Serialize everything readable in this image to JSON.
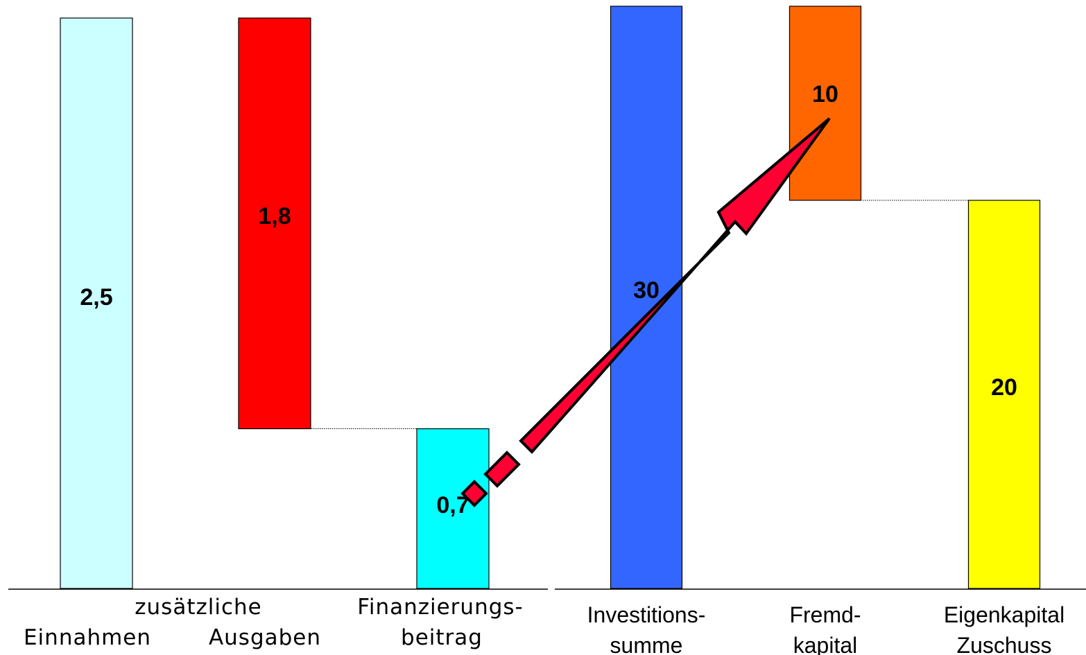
{
  "chart_data": [
    {
      "type": "bar",
      "subtype": "waterfall",
      "title": "",
      "xlabel": "",
      "ylabel": "",
      "categories": [
        [
          "",
          "Einnahmen"
        ],
        [
          "zusätzliche",
          "Ausgaben"
        ],
        [
          "Finanzierungs-",
          "beitrag"
        ]
      ],
      "bars": [
        {
          "value": 2.5,
          "base": 0,
          "label": "2,5",
          "color": "#CCFFFF"
        },
        {
          "value": 1.8,
          "base": 0.7,
          "label": "1,8",
          "color": "#FF0000"
        },
        {
          "value": 0.7,
          "base": 0,
          "label": "0,7",
          "color": "#00FFFF"
        }
      ],
      "ylim": [
        0,
        2.5
      ],
      "grid": false,
      "legend": "none"
    },
    {
      "type": "bar",
      "subtype": "waterfall",
      "title": "",
      "xlabel": "",
      "ylabel": "",
      "categories": [
        [
          "Investitions-",
          "summe"
        ],
        [
          "Fremd-",
          "kapital"
        ],
        [
          "Eigenkapital",
          "Zuschuss"
        ]
      ],
      "bars": [
        {
          "value": 30,
          "base": 0,
          "label": "30",
          "color": "#3366FF"
        },
        {
          "value": 10,
          "base": 20,
          "label": "10",
          "color": "#FF6600"
        },
        {
          "value": 20,
          "base": 0,
          "label": "20",
          "color": "#FFFF00"
        }
      ],
      "ylim": [
        0,
        30
      ],
      "grid": false,
      "legend": "none"
    }
  ],
  "annotation": {
    "type": "arrow",
    "color": "#FF0033",
    "from": "0,7",
    "to": "10"
  }
}
